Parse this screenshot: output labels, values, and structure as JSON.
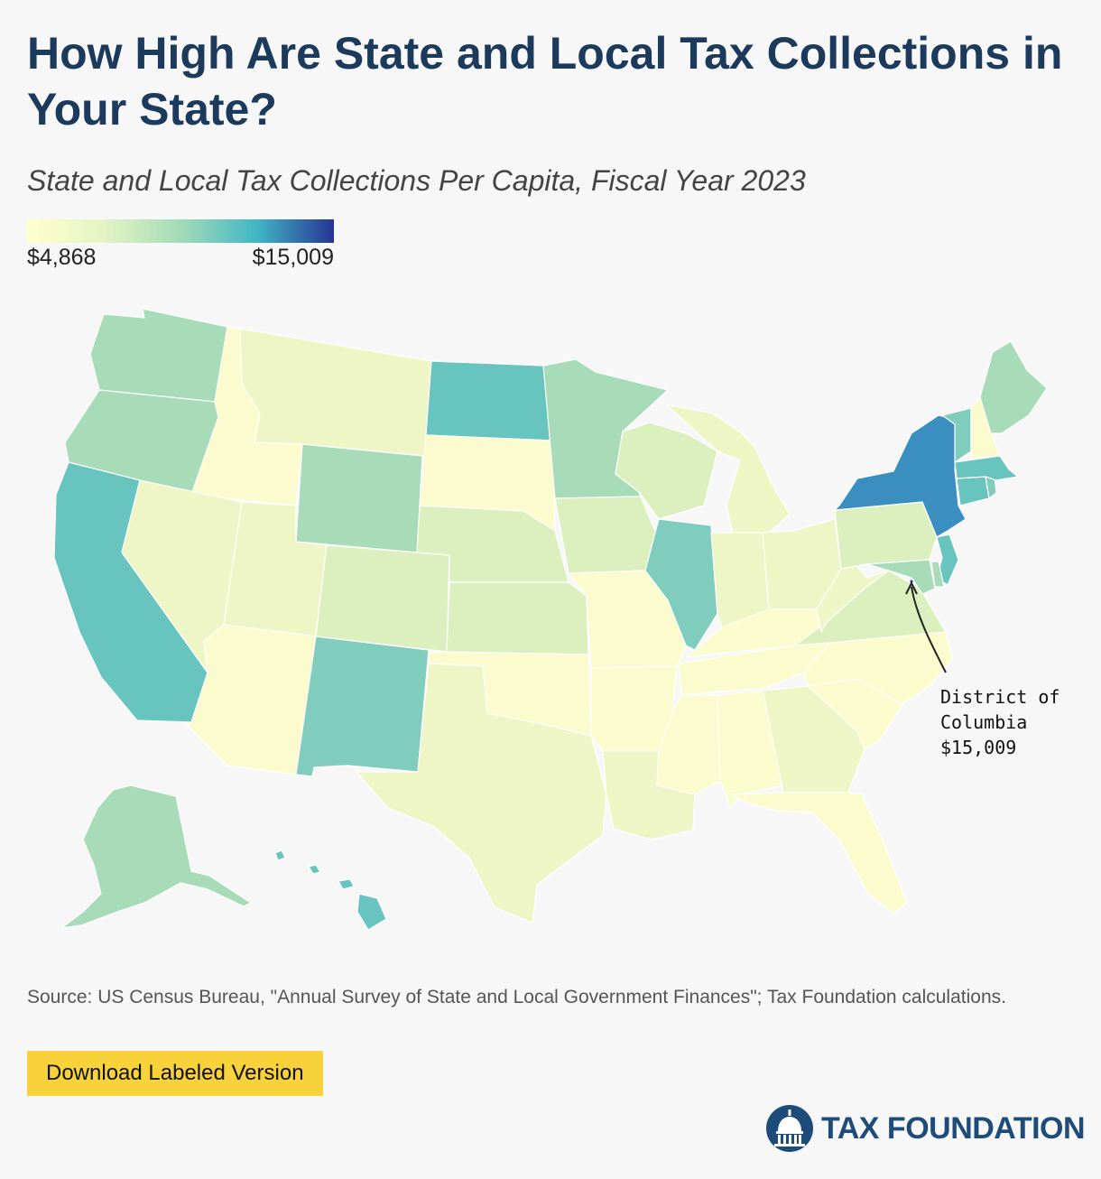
{
  "title": "How High Are State and Local Tax Collections in Your State?",
  "subtitle": "State and Local Tax Collections Per Capita, Fiscal Year 2023",
  "legend": {
    "min_label": "$4,868",
    "max_label": "$15,009",
    "min_value": 4868,
    "max_value": 15009,
    "colors": [
      "#ffffcc",
      "#e4f4c3",
      "#a3dbb8",
      "#41b6c4",
      "#253494"
    ]
  },
  "map": {
    "type": "choropleth",
    "region": "United States",
    "levels": {
      "very_low": "#fbfbcd",
      "low": "#eef6c6",
      "low_mid": "#dcf0bf",
      "mid": "#a8dcb8",
      "mid_high": "#80cdbd",
      "high": "#68c4be",
      "very_high": "#3a8fc0",
      "max": "#253494"
    }
  },
  "dc_callout": {
    "name": "District of\nColumbia",
    "value": "$15,009"
  },
  "source": "Source: US Census Bureau, \"Annual Survey of State and Local Government Finances\"; Tax Foundation calculations.",
  "download_label": "Download Labeled Version",
  "brand": {
    "name": "TAX FOUNDATION",
    "icon": "capitol-dome-icon"
  }
}
